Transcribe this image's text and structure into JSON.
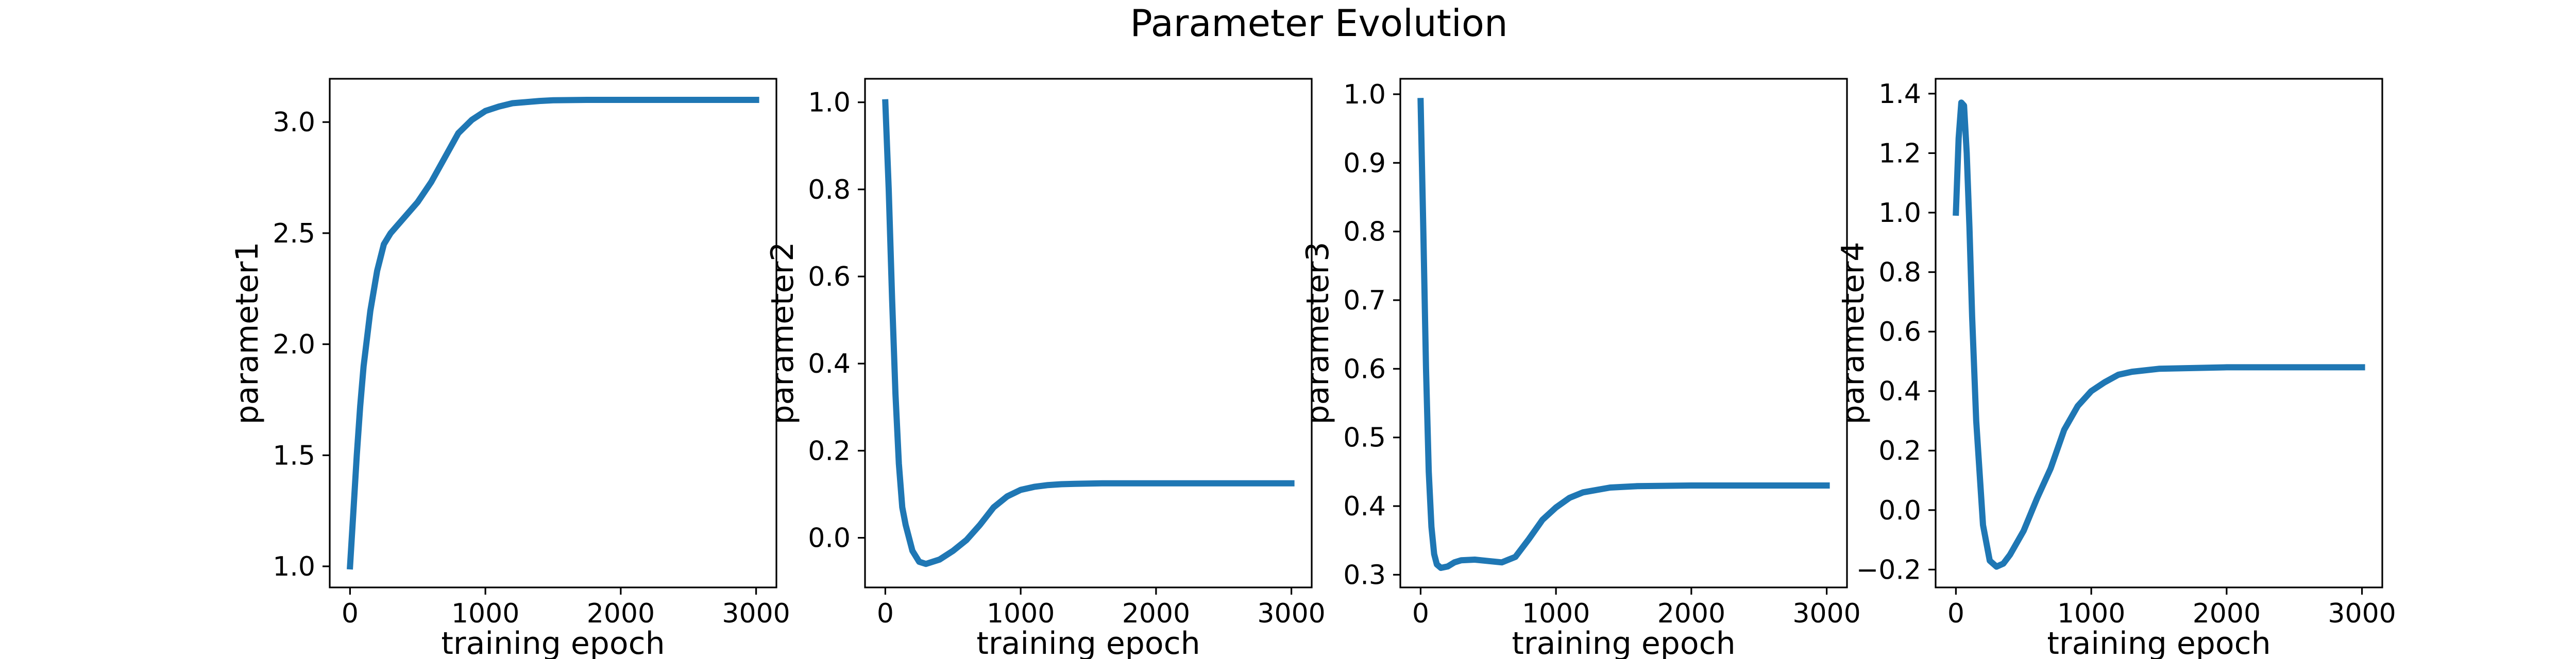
{
  "figure": {
    "title": "Parameter Evolution"
  },
  "style": {
    "line_color": "#1f77b4",
    "axes_color": "#000000",
    "background": "#ffffff"
  },
  "chart_data": [
    {
      "type": "line",
      "title": "",
      "xlabel": "training epoch",
      "ylabel": "parameter1",
      "xlim": [
        -150,
        3150
      ],
      "ylim": [
        0.905,
        3.195
      ],
      "xticks": [
        0,
        1000,
        2000,
        3000
      ],
      "xtick_labels": [
        "0",
        "1000",
        "2000",
        "3000"
      ],
      "yticks": [
        1.0,
        1.5,
        2.0,
        2.5,
        3.0
      ],
      "ytick_labels": [
        "1.0",
        "1.5",
        "2.0",
        "2.5",
        "3.0"
      ],
      "grid": false,
      "series": [
        {
          "x": [
            0,
            25,
            50,
            75,
            100,
            150,
            200,
            250,
            300,
            400,
            500,
            600,
            700,
            800,
            900,
            1000,
            1100,
            1200,
            1300,
            1400,
            1500,
            1750,
            2000,
            2500,
            3000
          ],
          "y": [
            1.0,
            1.25,
            1.5,
            1.72,
            1.9,
            2.15,
            2.33,
            2.45,
            2.5,
            2.57,
            2.64,
            2.73,
            2.84,
            2.95,
            3.01,
            3.05,
            3.07,
            3.085,
            3.09,
            3.095,
            3.098,
            3.1,
            3.1,
            3.1,
            3.1
          ]
        }
      ]
    },
    {
      "type": "line",
      "title": "",
      "xlabel": "training epoch",
      "ylabel": "parameter2",
      "xlim": [
        -150,
        3150
      ],
      "ylim": [
        -0.114,
        1.054
      ],
      "xticks": [
        0,
        1000,
        2000,
        3000
      ],
      "xtick_labels": [
        "0",
        "1000",
        "2000",
        "3000"
      ],
      "yticks": [
        0.0,
        0.2,
        0.4,
        0.6,
        0.8,
        1.0
      ],
      "ytick_labels": [
        "0.0",
        "0.2",
        "0.4",
        "0.6",
        "0.8",
        "1.0"
      ],
      "grid": false,
      "series": [
        {
          "x": [
            0,
            25,
            50,
            75,
            100,
            125,
            150,
            200,
            250,
            300,
            400,
            500,
            600,
            700,
            800,
            900,
            1000,
            1100,
            1200,
            1300,
            1400,
            1600,
            2000,
            2500,
            3000
          ],
          "y": [
            1.0,
            0.8,
            0.55,
            0.33,
            0.17,
            0.07,
            0.03,
            -0.03,
            -0.055,
            -0.06,
            -0.05,
            -0.03,
            -0.005,
            0.03,
            0.07,
            0.095,
            0.11,
            0.117,
            0.121,
            0.123,
            0.124,
            0.125,
            0.125,
            0.125,
            0.125
          ]
        }
      ]
    },
    {
      "type": "line",
      "title": "",
      "xlabel": "training epoch",
      "ylabel": "parameter3",
      "xlim": [
        -150,
        3150
      ],
      "ylim": [
        0.2815,
        1.0225
      ],
      "xticks": [
        0,
        1000,
        2000,
        3000
      ],
      "xtick_labels": [
        "0",
        "1000",
        "2000",
        "3000"
      ],
      "yticks": [
        0.3,
        0.4,
        0.5,
        0.6,
        0.7,
        0.8,
        0.9,
        1.0
      ],
      "ytick_labels": [
        "0.3",
        "0.4",
        "0.5",
        "0.6",
        "0.7",
        "0.8",
        "0.9",
        "1.0"
      ],
      "grid": false,
      "series": [
        {
          "x": [
            0,
            20,
            40,
            60,
            80,
            100,
            120,
            150,
            200,
            250,
            300,
            400,
            500,
            600,
            700,
            800,
            900,
            1000,
            1100,
            1200,
            1400,
            1600,
            2000,
            2500,
            3000
          ],
          "y": [
            0.99,
            0.8,
            0.6,
            0.45,
            0.37,
            0.33,
            0.315,
            0.31,
            0.312,
            0.318,
            0.321,
            0.322,
            0.32,
            0.318,
            0.326,
            0.352,
            0.38,
            0.398,
            0.412,
            0.42,
            0.427,
            0.429,
            0.43,
            0.43,
            0.43
          ]
        }
      ]
    },
    {
      "type": "line",
      "title": "",
      "xlabel": "training epoch",
      "ylabel": "parameter4",
      "xlim": [
        -150,
        3150
      ],
      "ylim": [
        -0.26,
        1.45
      ],
      "xticks": [
        0,
        1000,
        2000,
        3000
      ],
      "xtick_labels": [
        "0",
        "1000",
        "2000",
        "3000"
      ],
      "yticks": [
        -0.2,
        0.0,
        0.2,
        0.4,
        0.6,
        0.8,
        1.0,
        1.2,
        1.4
      ],
      "ytick_labels": [
        "−0.2",
        "0.0",
        "0.2",
        "0.4",
        "0.6",
        "0.8",
        "1.0",
        "1.2",
        "1.4"
      ],
      "grid": false,
      "series": [
        {
          "x": [
            0,
            20,
            40,
            60,
            80,
            100,
            120,
            150,
            200,
            250,
            300,
            350,
            400,
            500,
            600,
            700,
            800,
            900,
            1000,
            1100,
            1200,
            1300,
            1500,
            2000,
            2500,
            3000
          ],
          "y": [
            1.0,
            1.25,
            1.37,
            1.36,
            1.2,
            0.95,
            0.65,
            0.3,
            -0.05,
            -0.17,
            -0.19,
            -0.18,
            -0.15,
            -0.07,
            0.04,
            0.14,
            0.27,
            0.35,
            0.4,
            0.43,
            0.455,
            0.465,
            0.475,
            0.48,
            0.48,
            0.48
          ]
        }
      ]
    }
  ]
}
